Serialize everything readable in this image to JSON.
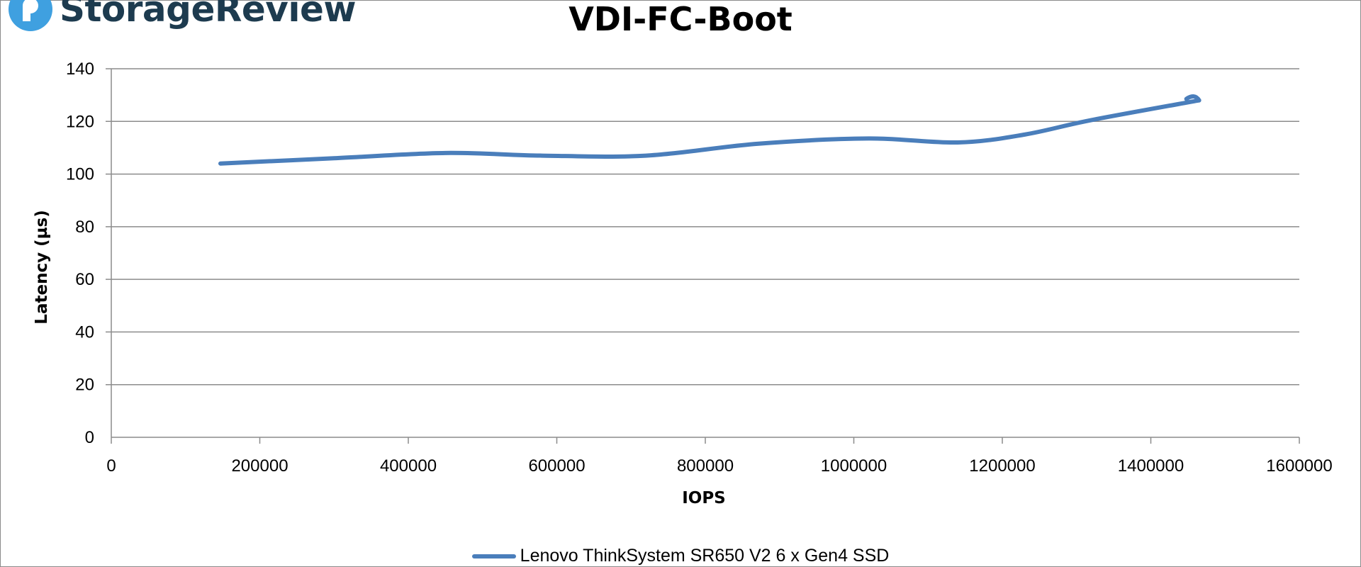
{
  "brand": {
    "name": "StorageReview",
    "logo_icon": "storagereview-logo-icon",
    "logo_color": "#3fa0e0",
    "text_color": "#1d3b4f"
  },
  "chart_data": {
    "type": "line",
    "title": "VDI-FC-Boot",
    "xlabel": "IOPS",
    "ylabel": "Latency (µs)",
    "xlim": [
      0,
      1600000
    ],
    "ylim": [
      0,
      140
    ],
    "x_ticks": [
      "0",
      "200000",
      "400000",
      "600000",
      "800000",
      "1000000",
      "1200000",
      "1400000",
      "1600000"
    ],
    "y_ticks": [
      "0",
      "20",
      "40",
      "60",
      "80",
      "100",
      "120",
      "140"
    ],
    "grid": true,
    "legend_position": "bottom",
    "series": [
      {
        "name": "Lenovo ThinkSystem SR650 V2 6 x Gen4 SSD",
        "color": "#4a7ebb",
        "x": [
          147000,
          300000,
          450000,
          580000,
          720000,
          870000,
          1020000,
          1140000,
          1230000,
          1320000,
          1465000
        ],
        "y": [
          104,
          106,
          108,
          107,
          107,
          111.5,
          113.5,
          112,
          115,
          120.5,
          128
        ]
      }
    ]
  }
}
